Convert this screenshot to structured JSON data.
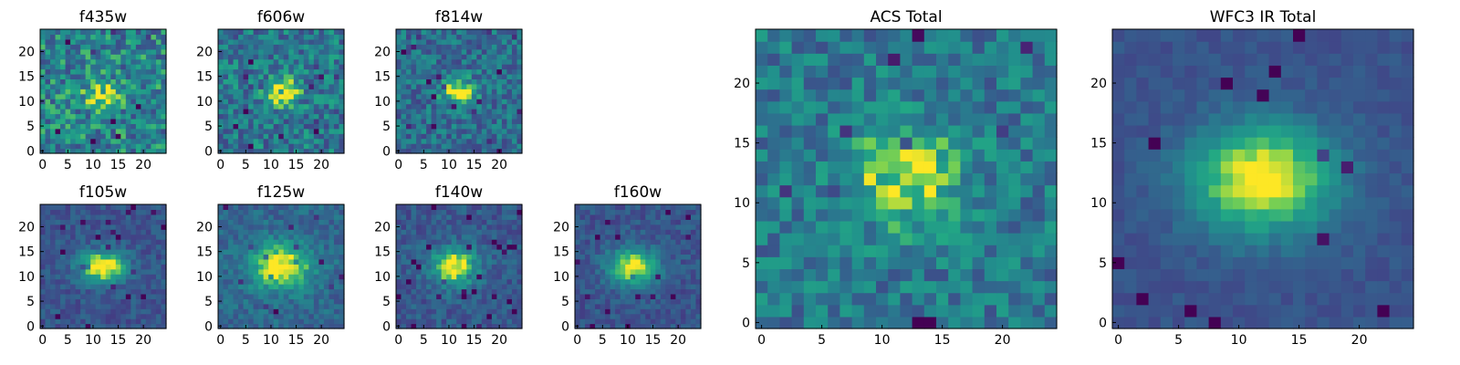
{
  "figure": {
    "colormap": "viridis",
    "colors": {
      "low": "#440154",
      "mid": "#21918c",
      "high": "#fde725"
    },
    "panels": [
      {
        "title": "f435w",
        "xticks": [
          "0",
          "5",
          "10",
          "15",
          "20"
        ],
        "yticks": [
          "0",
          "5",
          "10",
          "15",
          "20"
        ],
        "source": {
          "x": 12,
          "y": 11,
          "sx": 2.6,
          "sy": 2.2,
          "amp": 0.35
        },
        "noise": 0.55,
        "bg": 0.55,
        "seed": 11
      },
      {
        "title": "f606w",
        "xticks": [
          "0",
          "5",
          "10",
          "15",
          "20"
        ],
        "yticks": [
          "0",
          "5",
          "10",
          "15",
          "20"
        ],
        "source": {
          "x": 12,
          "y": 12,
          "sx": 2.6,
          "sy": 1.8,
          "amp": 0.55
        },
        "noise": 0.5,
        "bg": 0.5,
        "seed": 23
      },
      {
        "title": "f814w",
        "xticks": [
          "0",
          "5",
          "10",
          "15",
          "20"
        ],
        "yticks": [
          "0",
          "5",
          "10",
          "15",
          "20"
        ],
        "source": {
          "x": 12,
          "y": 12,
          "sx": 2.4,
          "sy": 1.8,
          "amp": 0.6
        },
        "noise": 0.42,
        "bg": 0.45,
        "seed": 37
      },
      {
        "title": "f105w",
        "xticks": [
          "0",
          "5",
          "10",
          "15",
          "20"
        ],
        "yticks": [
          "0",
          "5",
          "10",
          "15",
          "20"
        ],
        "source": {
          "x": 12,
          "y": 12,
          "sx": 3.2,
          "sy": 2.2,
          "amp": 0.75
        },
        "noise": 0.22,
        "bg": 0.33,
        "seed": 41
      },
      {
        "title": "f125w",
        "xticks": [
          "0",
          "5",
          "10",
          "15",
          "20"
        ],
        "yticks": [
          "0",
          "5",
          "10",
          "15",
          "20"
        ],
        "source": {
          "x": 12,
          "y": 12,
          "sx": 4.2,
          "sy": 3.2,
          "amp": 0.65
        },
        "noise": 0.25,
        "bg": 0.42,
        "seed": 53
      },
      {
        "title": "f140w",
        "xticks": [
          "0",
          "5",
          "10",
          "15",
          "20"
        ],
        "yticks": [
          "0",
          "5",
          "10",
          "15",
          "20"
        ],
        "source": {
          "x": 11,
          "y": 12,
          "sx": 3.2,
          "sy": 2.6,
          "amp": 0.7
        },
        "noise": 0.25,
        "bg": 0.35,
        "seed": 67
      },
      {
        "title": "f160w",
        "xticks": [
          "0",
          "5",
          "10",
          "15",
          "20"
        ],
        "yticks": [
          "0",
          "5",
          "10",
          "15",
          "20"
        ],
        "source": {
          "x": 11,
          "y": 12,
          "sx": 3.4,
          "sy": 2.6,
          "amp": 0.7
        },
        "noise": 0.22,
        "bg": 0.33,
        "seed": 79
      },
      {
        "title": "ACS Total",
        "xticks": [
          "0",
          "5",
          "10",
          "15",
          "20"
        ],
        "yticks": [
          "0",
          "5",
          "10",
          "15",
          "20"
        ],
        "source": {
          "x": 12,
          "y": 12,
          "sx": 3.4,
          "sy": 2.8,
          "amp": 0.45
        },
        "noise": 0.4,
        "bg": 0.5,
        "seed": 97
      },
      {
        "title": "WFC3 IR Total",
        "xticks": [
          "0",
          "5",
          "10",
          "15",
          "20"
        ],
        "yticks": [
          "0",
          "5",
          "10",
          "15",
          "20"
        ],
        "source": {
          "x": 12,
          "y": 12,
          "sx": 4.2,
          "sy": 3.2,
          "amp": 0.75
        },
        "noise": 0.12,
        "bg": 0.32,
        "seed": 113
      }
    ]
  }
}
